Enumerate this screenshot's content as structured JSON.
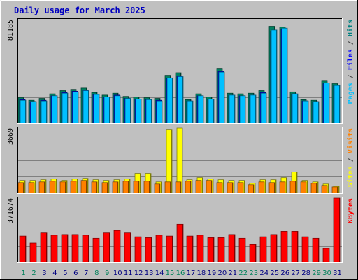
{
  "chart_data": {
    "type": "bar",
    "title": "Daily usage for March 2025",
    "categories": [
      "1",
      "2",
      "3",
      "4",
      "5",
      "6",
      "7",
      "8",
      "9",
      "10",
      "11",
      "12",
      "13",
      "14",
      "15",
      "16",
      "17",
      "18",
      "19",
      "20",
      "21",
      "22",
      "23",
      "24",
      "25",
      "26",
      "27",
      "28",
      "29",
      "30",
      "31"
    ],
    "weekend_days": [
      "1",
      "2",
      "8",
      "9",
      "15",
      "16",
      "22",
      "23",
      "29",
      "30"
    ],
    "panels": [
      {
        "name": "top",
        "ymax": 81185,
        "ymax_label": "81185",
        "right_label": [
          {
            "text": "Pages",
            "color": "#00c0ff"
          },
          {
            "text": " / ",
            "color": "#404040"
          },
          {
            "text": "Files",
            "color": "#0000ff"
          },
          {
            "text": " / ",
            "color": "#404040"
          },
          {
            "text": "Hits",
            "color": "#008080"
          }
        ],
        "series": [
          {
            "name": "Hits",
            "color": "#008060",
            "values": [
              20000,
              18000,
              19500,
              23000,
              25500,
              26500,
              27500,
              24000,
              22000,
              23500,
              21000,
              20500,
              20000,
              19500,
              37500,
              39500,
              18500,
              23000,
              20500,
              43000,
              23500,
              23000,
              23500,
              25500,
              76000,
              75500,
              24500,
              18500,
              18000,
              33000,
              31000
            ]
          },
          {
            "name": "Files",
            "color": "#0000ff",
            "values": [
              18500,
              17000,
              18000,
              21500,
              24000,
              25000,
              26000,
              22500,
              20500,
              22000,
              19500,
              19000,
              18500,
              18000,
              35000,
              37000,
              17500,
              21500,
              19000,
              40500,
              22000,
              21500,
              22000,
              24000,
              72000,
              73500,
              23000,
              17500,
              17000,
              31000,
              29500
            ]
          },
          {
            "name": "Pages",
            "color": "#00c0ff",
            "values": [
              18000,
              17000,
              17500,
              21500,
              23500,
              24500,
              25500,
              22500,
              20500,
              21500,
              19500,
              19000,
              18500,
              17500,
              35500,
              36500,
              17500,
              21500,
              19000,
              40000,
              22000,
              21500,
              22000,
              23500,
              73000,
              74500,
              23000,
              17500,
              17000,
              31500,
              29500
            ]
          }
        ]
      },
      {
        "name": "middle",
        "ymax": 3669,
        "ymax_label": "3669",
        "right_label": [
          {
            "text": "Sites",
            "color": "#ffff00"
          },
          {
            "text": " / ",
            "color": "#404040"
          },
          {
            "text": "Visits",
            "color": "#ff8000"
          }
        ],
        "series": [
          {
            "name": "Sites",
            "color": "#ffff00",
            "values": [
              720,
              720,
              760,
              800,
              720,
              800,
              840,
              760,
              720,
              760,
              800,
              1120,
              1120,
              640,
              3600,
              3669,
              760,
              880,
              800,
              760,
              720,
              720,
              560,
              760,
              760,
              880,
              1200,
              720,
              640,
              520,
              400
            ]
          },
          {
            "name": "Visits",
            "color": "#ff8000",
            "values": [
              600,
              600,
              640,
              680,
              640,
              680,
              720,
              640,
              600,
              640,
              680,
              680,
              680,
              520,
              640,
              640,
              680,
              720,
              720,
              600,
              600,
              600,
              480,
              640,
              600,
              640,
              680,
              640,
              560,
              440,
              360
            ]
          }
        ]
      },
      {
        "name": "bottom",
        "ymax": 371674,
        "ymax_label": "371674",
        "right_label": [
          {
            "text": "KBytes",
            "color": "#ff0000"
          }
        ],
        "series": [
          {
            "name": "KBytes",
            "color": "#ff0000",
            "values": [
              153000,
              113000,
              171000,
              158000,
              162000,
              162000,
              158000,
              140000,
              171000,
              185000,
              171000,
              149000,
              144000,
              158000,
              153000,
              221000,
              153000,
              158000,
              144000,
              144000,
              162000,
              140000,
              104000,
              149000,
              162000,
              180000,
              180000,
              149000,
              140000,
              81000,
              371674
            ]
          }
        ]
      }
    ]
  }
}
